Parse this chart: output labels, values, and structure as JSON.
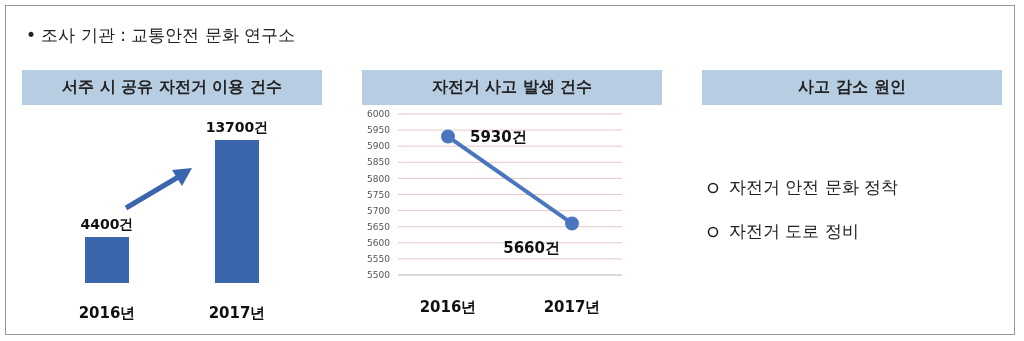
{
  "chart_data": [
    {
      "type": "bar",
      "title": "서주 시 공유 자전거 이용 건수",
      "categories": [
        "2016년",
        "2017년"
      ],
      "values": [
        4400,
        13700
      ],
      "value_labels": [
        "4400건",
        "13700건"
      ],
      "color": "#3b65ad",
      "annotations": [
        "• 조사 기관 : 교통안전 문화 연구소"
      ]
    },
    {
      "type": "line",
      "title": "자전거 사고 발생 건수",
      "categories": [
        "2016년",
        "2017년"
      ],
      "values": [
        5930,
        5660
      ],
      "value_labels": [
        "5930건",
        "5660건"
      ],
      "color": "#4a76c0",
      "ylim": [
        5500,
        6000
      ],
      "yticks": [
        5500,
        5550,
        5600,
        5650,
        5700,
        5750,
        5800,
        5850,
        5900,
        5950,
        6000
      ],
      "grid": "y",
      "marker": "circle"
    },
    {
      "type": "other",
      "title": "사고 감소 원인",
      "annotations": [
        "자전거 안전 문화 정착",
        "자전거 도로 정비"
      ]
    }
  ]
}
